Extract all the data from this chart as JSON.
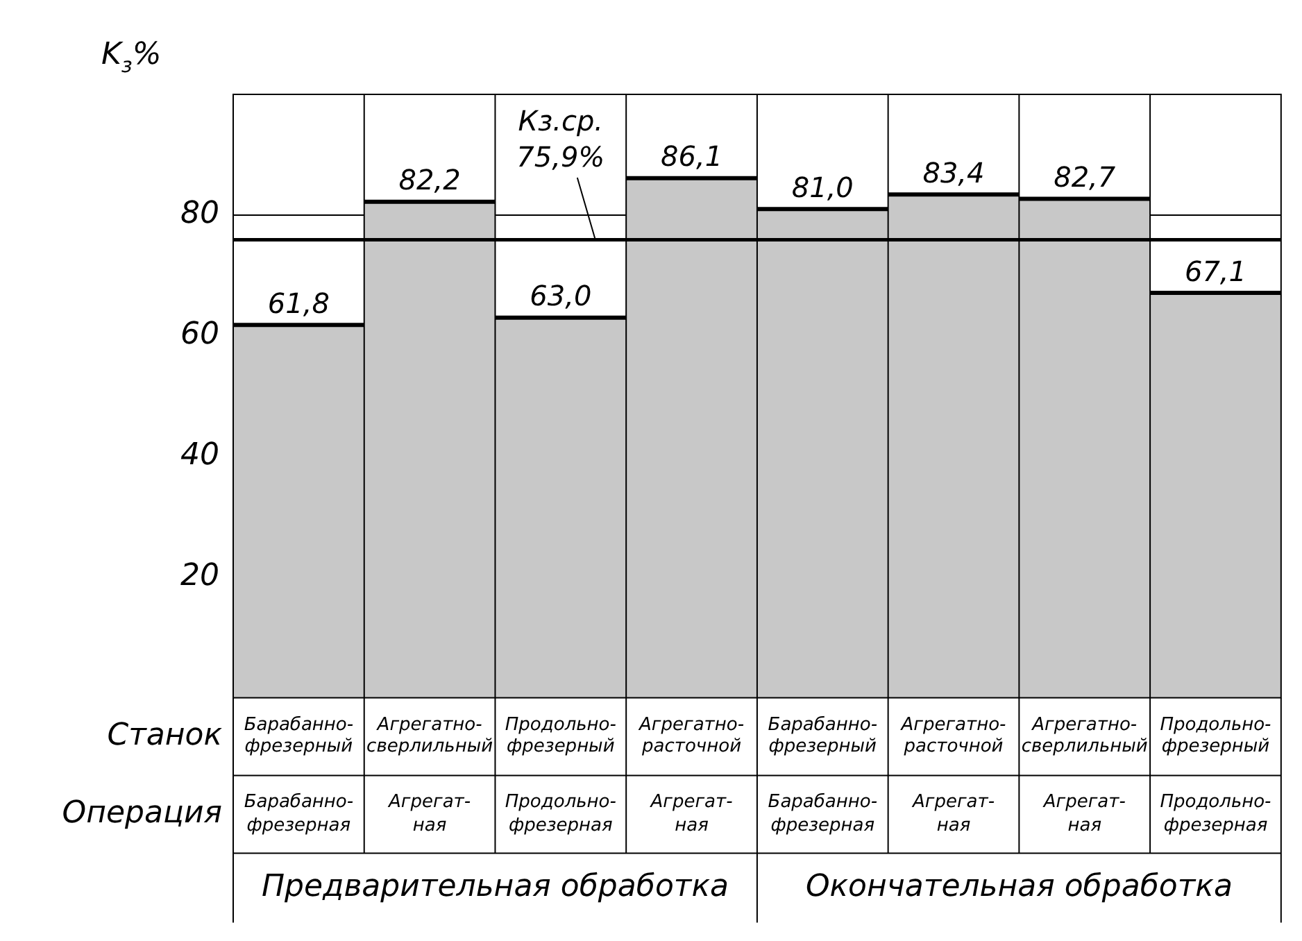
{
  "chart_data": {
    "type": "bar",
    "ylabel": "K$_{з}$%",
    "xlabel": "Станок",
    "categories": [
      "Барабанно-фрезерный",
      "Агрегатно-сверлильный",
      "Продольно-фрезерный",
      "Агрегатно-расточной",
      "Барабанно-фрезерный",
      "Агрегатно-расточной",
      "Агрегатно-сверлильный",
      "Продольно-фрезерный"
    ],
    "values": [
      61.8,
      82.2,
      63.0,
      86.1,
      81.0,
      83.4,
      82.7,
      67.1
    ],
    "value_labels": [
      "61,8",
      "82,2",
      "63,0",
      "86,1",
      "81,0",
      "83,4",
      "82,7",
      "67,1"
    ],
    "color": "#c8c8c8",
    "ylim": [
      0,
      100
    ],
    "yticks": [
      20,
      40,
      60,
      80
    ],
    "grid": "y",
    "ref_lines": [
      {
        "axis": "y",
        "value": 75.9,
        "label": "Кз.ср. 75,9%",
        "color": "#000000"
      }
    ],
    "annotations": [
      "Операция",
      "Барабанно-фрезерная",
      "Агрегат-ная",
      "Продольно-фрезерная",
      "Агрегат-ная",
      "Барабанно-фрезерная",
      "Агрегат-ная",
      "Агрегат-ная",
      "Продольно-фрезерная",
      "Предварительная обработка",
      "Окончательная обработка"
    ]
  }
}
